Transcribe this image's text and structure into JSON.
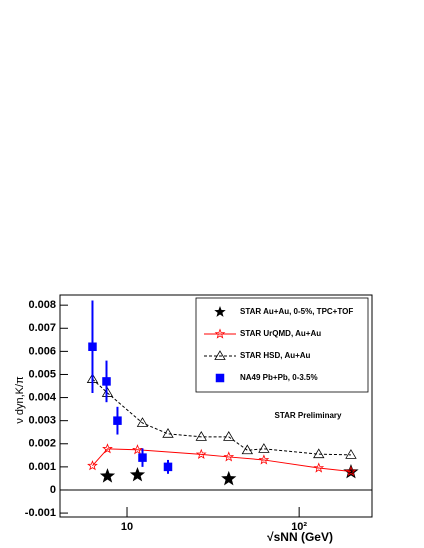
{
  "chart_data": {
    "type": "scatter",
    "xlabel": "√sNN (GeV)",
    "ylabel": "ν dyn,K/π",
    "annotation": "STAR Preliminary",
    "xscale": "log",
    "xlim": [
      4.08,
      265
    ],
    "ylim": [
      -0.00117,
      0.00844
    ],
    "xticks": [
      10,
      {
        "value": 100,
        "label": "10²"
      }
    ],
    "yticks": [
      -0.001,
      0,
      0.001,
      0.002,
      0.003,
      0.004,
      0.005,
      0.006,
      0.007,
      0.008
    ],
    "series": [
      {
        "name": "STAR Au+Au, 0-5%, TPC+TOF",
        "color": "#000000",
        "marker": "star-filled",
        "line": "none",
        "x": [
          7.7,
          11.5,
          39,
          200
        ],
        "values": [
          0.0006,
          0.00065,
          0.00048,
          0.00078
        ]
      },
      {
        "name": "STAR UrQMD, Au+Au",
        "color": "#ff0000",
        "marker": "star-open",
        "line": "solid",
        "x": [
          6.3,
          7.7,
          11.5,
          27,
          39,
          62.4,
          130,
          200
        ],
        "values": [
          0.00105,
          0.00178,
          0.00174,
          0.00154,
          0.00143,
          0.0013,
          0.00095,
          0.0008
        ]
      },
      {
        "name": "STAR HSD, Au+Au",
        "color": "#000000",
        "marker": "triangle-open",
        "line": "dashed",
        "x": [
          6.3,
          7.7,
          12.3,
          17.3,
          27,
          39,
          50,
          62.4,
          130,
          200
        ],
        "values": [
          0.0048,
          0.0042,
          0.0029,
          0.00243,
          0.0023,
          0.0023,
          0.00172,
          0.00178,
          0.00155,
          0.00152
        ]
      },
      {
        "name": "NA49 Pb+Pb, 0-3.5%",
        "color": "#0000ff",
        "marker": "square",
        "line": "none",
        "x": [
          6.3,
          7.6,
          8.8,
          12.3,
          17.3
        ],
        "values": [
          0.0062,
          0.0047,
          0.003,
          0.0014,
          0.001
        ],
        "errors": [
          0.002,
          0.0009,
          0.0006,
          0.0004,
          0.0003
        ]
      }
    ]
  }
}
